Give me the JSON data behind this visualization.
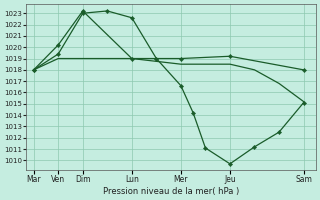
{
  "background_color": "#c5ede0",
  "grid_color": "#8dc8b0",
  "line_color": "#1a5c2a",
  "x_labels": [
    "Mar",
    "Ven",
    "Dim",
    "Lun",
    "Mer",
    "Jeu",
    "Sam"
  ],
  "x_tick_pos": [
    0,
    1,
    2,
    4,
    6,
    8,
    11
  ],
  "xlim": [
    -0.3,
    11.5
  ],
  "ylabel": "Pression niveau de la mer( hPa )",
  "ylim": [
    1009.2,
    1023.8
  ],
  "yticks": [
    1010,
    1011,
    1012,
    1013,
    1014,
    1015,
    1016,
    1017,
    1018,
    1019,
    1020,
    1021,
    1022,
    1023
  ],
  "series1_x": [
    0,
    1,
    2,
    3,
    4,
    5,
    6,
    6.5,
    7,
    8,
    9,
    10,
    11
  ],
  "series1_y": [
    1018.0,
    1019.4,
    1023.0,
    1023.2,
    1022.6,
    1019.0,
    1016.6,
    1014.2,
    1011.1,
    1009.7,
    1011.2,
    1012.5,
    1015.1
  ],
  "series2_x": [
    0,
    1,
    2,
    4,
    6,
    8,
    11
  ],
  "series2_y": [
    1018.0,
    1020.2,
    1023.2,
    1019.0,
    1019.0,
    1019.2,
    1018.0
  ],
  "series3_x": [
    0,
    1,
    2,
    4,
    6,
    8,
    9,
    10,
    11
  ],
  "series3_y": [
    1018.0,
    1019.0,
    1019.0,
    1019.0,
    1018.5,
    1018.5,
    1018.0,
    1016.8,
    1015.2
  ],
  "marker_size": 2.2,
  "line_width": 0.9
}
